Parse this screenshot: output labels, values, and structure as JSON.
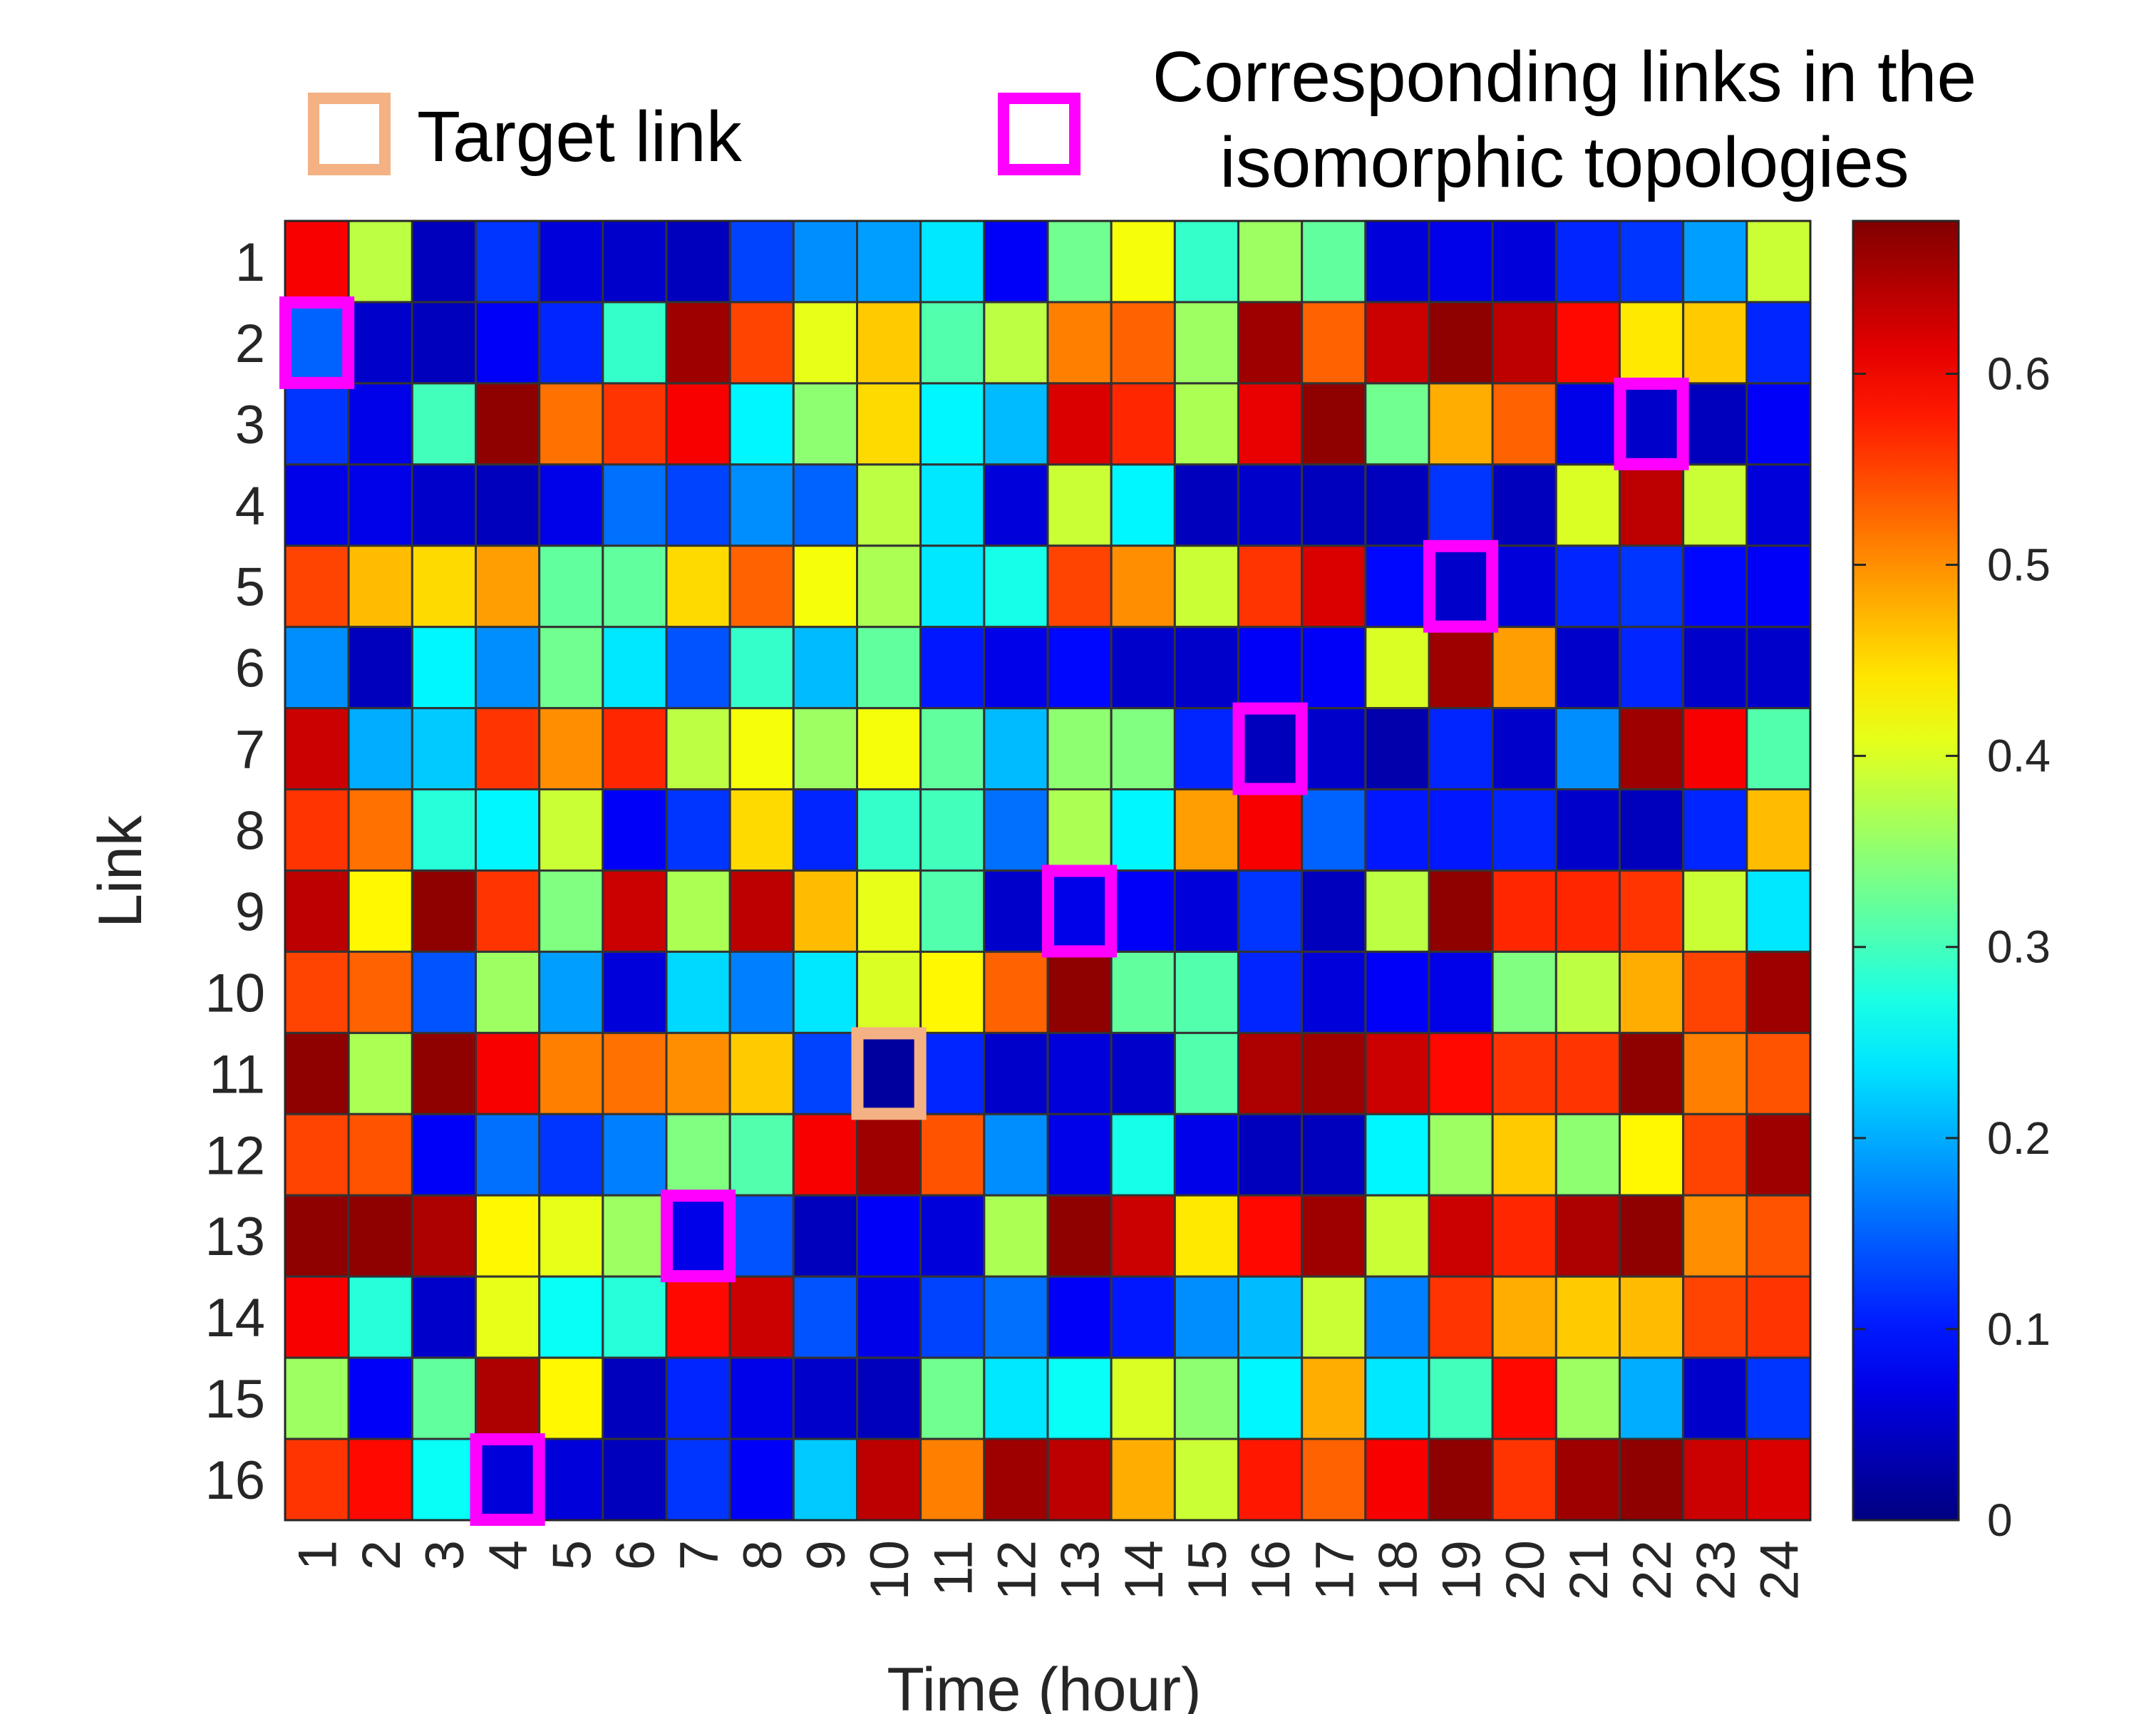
{
  "legend": {
    "target_label": "Target link",
    "corresponding_label_line1": "Corresponding links in the",
    "corresponding_label_line2": "isomorphic topologies",
    "target_color": "#F4B183",
    "corresponding_color": "#FF00FF"
  },
  "chart_data": {
    "type": "heatmap",
    "xlabel": "Time (hour)",
    "ylabel": "Link",
    "x_categories": [
      "1",
      "2",
      "3",
      "4",
      "5",
      "6",
      "7",
      "8",
      "9",
      "10",
      "11",
      "12",
      "13",
      "14",
      "15",
      "16",
      "17",
      "18",
      "19",
      "20",
      "21",
      "22",
      "23",
      "24"
    ],
    "y_categories": [
      "1",
      "2",
      "3",
      "4",
      "5",
      "6",
      "7",
      "8",
      "9",
      "10",
      "11",
      "12",
      "13",
      "14",
      "15",
      "16"
    ],
    "colorscale": "jet",
    "clim": [
      0,
      0.68
    ],
    "colorbar_ticks": [
      0,
      0.1,
      0.2,
      0.3,
      0.4,
      0.5,
      0.6
    ],
    "colorbar_tick_labels": [
      "0",
      "0.1",
      "0.2",
      "0.3",
      "0.4",
      "0.5",
      "0.6"
    ],
    "values": [
      [
        0.6,
        0.38,
        0.04,
        0.12,
        0.06,
        0.05,
        0.04,
        0.13,
        0.18,
        0.19,
        0.24,
        0.08,
        0.33,
        0.42,
        0.29,
        0.36,
        0.32,
        0.06,
        0.07,
        0.06,
        0.11,
        0.12,
        0.19,
        0.39
      ],
      [
        0.15,
        0.05,
        0.04,
        0.08,
        0.11,
        0.29,
        0.66,
        0.55,
        0.41,
        0.46,
        0.31,
        0.38,
        0.51,
        0.53,
        0.36,
        0.66,
        0.53,
        0.63,
        0.67,
        0.64,
        0.59,
        0.44,
        0.46,
        0.11
      ],
      [
        0.12,
        0.07,
        0.3,
        0.67,
        0.52,
        0.56,
        0.6,
        0.25,
        0.35,
        0.45,
        0.25,
        0.21,
        0.62,
        0.57,
        0.37,
        0.61,
        0.67,
        0.33,
        0.48,
        0.53,
        0.07,
        0.05,
        0.04,
        0.08
      ],
      [
        0.07,
        0.07,
        0.05,
        0.04,
        0.07,
        0.16,
        0.13,
        0.18,
        0.15,
        0.38,
        0.24,
        0.06,
        0.39,
        0.25,
        0.04,
        0.05,
        0.04,
        0.04,
        0.12,
        0.04,
        0.4,
        0.64,
        0.39,
        0.06
      ],
      [
        0.55,
        0.47,
        0.45,
        0.49,
        0.32,
        0.32,
        0.45,
        0.53,
        0.42,
        0.37,
        0.24,
        0.27,
        0.55,
        0.5,
        0.39,
        0.56,
        0.62,
        0.09,
        0.05,
        0.06,
        0.11,
        0.12,
        0.09,
        0.08
      ],
      [
        0.18,
        0.04,
        0.25,
        0.18,
        0.33,
        0.24,
        0.14,
        0.29,
        0.21,
        0.32,
        0.1,
        0.07,
        0.09,
        0.05,
        0.05,
        0.08,
        0.08,
        0.4,
        0.66,
        0.49,
        0.05,
        0.11,
        0.05,
        0.05
      ],
      [
        0.63,
        0.2,
        0.22,
        0.56,
        0.5,
        0.57,
        0.38,
        0.42,
        0.36,
        0.42,
        0.32,
        0.21,
        0.35,
        0.34,
        0.11,
        0.04,
        0.05,
        0.03,
        0.11,
        0.05,
        0.18,
        0.66,
        0.6,
        0.31
      ],
      [
        0.56,
        0.52,
        0.28,
        0.25,
        0.39,
        0.08,
        0.12,
        0.45,
        0.11,
        0.29,
        0.3,
        0.16,
        0.37,
        0.25,
        0.49,
        0.6,
        0.15,
        0.1,
        0.1,
        0.11,
        0.05,
        0.04,
        0.11,
        0.47
      ],
      [
        0.64,
        0.43,
        0.67,
        0.56,
        0.34,
        0.63,
        0.37,
        0.64,
        0.47,
        0.41,
        0.31,
        0.05,
        0.07,
        0.08,
        0.06,
        0.12,
        0.04,
        0.38,
        0.67,
        0.57,
        0.57,
        0.56,
        0.39,
        0.24
      ],
      [
        0.55,
        0.53,
        0.14,
        0.36,
        0.19,
        0.06,
        0.23,
        0.17,
        0.24,
        0.4,
        0.43,
        0.53,
        0.67,
        0.32,
        0.31,
        0.11,
        0.06,
        0.08,
        0.07,
        0.34,
        0.38,
        0.48,
        0.55,
        0.66
      ],
      [
        0.67,
        0.37,
        0.67,
        0.6,
        0.51,
        0.52,
        0.5,
        0.46,
        0.13,
        0.02,
        0.11,
        0.05,
        0.06,
        0.05,
        0.31,
        0.65,
        0.66,
        0.63,
        0.59,
        0.56,
        0.56,
        0.67,
        0.51,
        0.54
      ],
      [
        0.55,
        0.54,
        0.08,
        0.16,
        0.12,
        0.17,
        0.34,
        0.31,
        0.6,
        0.66,
        0.54,
        0.18,
        0.07,
        0.27,
        0.07,
        0.04,
        0.04,
        0.25,
        0.36,
        0.46,
        0.35,
        0.43,
        0.55,
        0.66
      ],
      [
        0.67,
        0.67,
        0.65,
        0.43,
        0.41,
        0.36,
        0.07,
        0.14,
        0.04,
        0.08,
        0.06,
        0.37,
        0.67,
        0.63,
        0.44,
        0.59,
        0.66,
        0.39,
        0.63,
        0.57,
        0.65,
        0.67,
        0.5,
        0.54
      ],
      [
        0.6,
        0.28,
        0.05,
        0.41,
        0.26,
        0.28,
        0.59,
        0.63,
        0.14,
        0.07,
        0.13,
        0.16,
        0.08,
        0.1,
        0.18,
        0.21,
        0.39,
        0.17,
        0.56,
        0.48,
        0.46,
        0.47,
        0.55,
        0.56
      ],
      [
        0.36,
        0.08,
        0.32,
        0.65,
        0.43,
        0.04,
        0.11,
        0.07,
        0.05,
        0.04,
        0.33,
        0.24,
        0.26,
        0.4,
        0.35,
        0.25,
        0.48,
        0.24,
        0.3,
        0.59,
        0.36,
        0.2,
        0.05,
        0.12
      ],
      [
        0.56,
        0.59,
        0.26,
        0.06,
        0.06,
        0.04,
        0.12,
        0.08,
        0.22,
        0.64,
        0.51,
        0.66,
        0.64,
        0.48,
        0.39,
        0.58,
        0.53,
        0.6,
        0.67,
        0.56,
        0.66,
        0.67,
        0.63,
        0.62
      ]
    ],
    "highlights": [
      {
        "type": "target",
        "link": 11,
        "hour": 10
      },
      {
        "type": "corresponding",
        "link": 2,
        "hour": 1
      },
      {
        "type": "corresponding",
        "link": 3,
        "hour": 22
      },
      {
        "type": "corresponding",
        "link": 5,
        "hour": 19
      },
      {
        "type": "corresponding",
        "link": 7,
        "hour": 16
      },
      {
        "type": "corresponding",
        "link": 9,
        "hour": 13
      },
      {
        "type": "corresponding",
        "link": 13,
        "hour": 7
      },
      {
        "type": "corresponding",
        "link": 16,
        "hour": 4
      }
    ]
  }
}
